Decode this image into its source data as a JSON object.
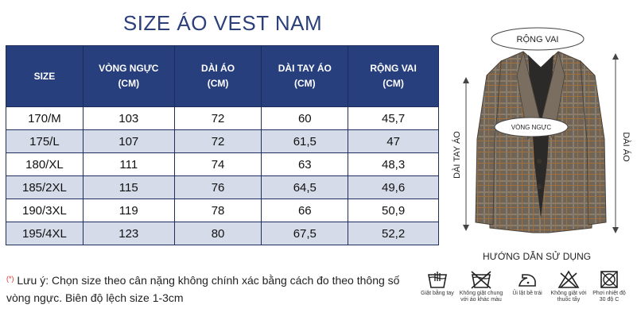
{
  "title": "SIZE ÁO VEST NAM",
  "table": {
    "headers": [
      {
        "line1": "SIZE",
        "line2": ""
      },
      {
        "line1": "VÒNG NGỰC",
        "line2": "(CM)"
      },
      {
        "line1": "DÀI ÁO",
        "line2": "(CM)"
      },
      {
        "line1": "DÀI TAY ÁO",
        "line2": "(CM)"
      },
      {
        "line1": "RỘNG VAI",
        "line2": "(CM)"
      }
    ],
    "rows": [
      [
        "170/M",
        "103",
        "72",
        "60",
        "45,7"
      ],
      [
        "175/L",
        "107",
        "72",
        "61,5",
        "47"
      ],
      [
        "180/XL",
        "111",
        "74",
        "63",
        "48,3"
      ],
      [
        "185/2XL",
        "115",
        "76",
        "64,5",
        "49,6"
      ],
      [
        "190/3XL",
        "119",
        "78",
        "66",
        "50,9"
      ],
      [
        "195/4XL",
        "123",
        "80",
        "67,5",
        "52,2"
      ]
    ]
  },
  "note": {
    "star": "(*)",
    "text": "Lưu ý: Chọn size theo cân nặng không chính xác bằng cách đo theo thông số vòng ngực. Biên độ lệch size 1-3cm"
  },
  "diagram": {
    "shoulder": "RỘNG VAI",
    "chest": "VÒNG NGỰC",
    "sleeve": "DÀI TAY ÁO",
    "length": "DÀI ÁO"
  },
  "guide_title": "HƯỚNG DẪN SỬ DỤNG",
  "care": [
    {
      "icon": "hand-wash-icon",
      "label1": "Giặt bằng tay",
      "label2": ""
    },
    {
      "icon": "no-mixed-wash-icon",
      "label1": "Không giặt chung",
      "label2": "với áo khác màu"
    },
    {
      "icon": "iron-icon",
      "label1": "Ủi lật bề trái",
      "label2": ""
    },
    {
      "icon": "no-bleach-icon",
      "label1": "Không giặt với",
      "label2": "thuốc tẩy"
    },
    {
      "icon": "no-tumble-dry-icon",
      "label1": "Phơi nhiệt độ",
      "label2": "30 độ C"
    }
  ],
  "colors": {
    "header_bg": "#273f7c",
    "alt_row": "#d5dbe8",
    "title": "#2b3f7a"
  }
}
